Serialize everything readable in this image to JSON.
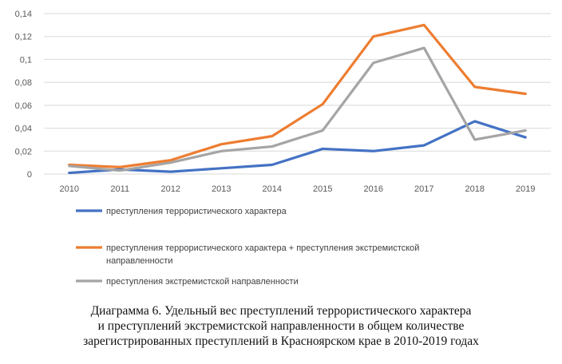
{
  "chart_data": {
    "type": "line",
    "x": [
      "2010",
      "2011",
      "2012",
      "2013",
      "2014",
      "2015",
      "2016",
      "2017",
      "2018",
      "2019"
    ],
    "ylim": [
      0,
      0.14
    ],
    "yticks": [
      "0",
      "0,02",
      "0,04",
      "0,06",
      "0,08",
      "0,1",
      "0,12",
      "0,14"
    ],
    "grid": true,
    "legend_position": "bottom",
    "series": [
      {
        "name": "преступления террористического характера",
        "color": "#4472C4",
        "values": [
          0.001,
          0.004,
          0.002,
          0.005,
          0.008,
          0.022,
          0.02,
          0.025,
          0.046,
          0.032
        ]
      },
      {
        "name": "преступления террористического характера + преступления экстремистской направленности",
        "name_lines": [
          "преступления террористического характера + преступления экстремистской",
          "направленности"
        ],
        "color": "#ED7D31",
        "values": [
          0.008,
          0.006,
          0.012,
          0.026,
          0.033,
          0.061,
          0.12,
          0.13,
          0.076,
          0.07
        ]
      },
      {
        "name": "преступления экстремистской направленности",
        "color": "#A5A5A5",
        "values": [
          0.007,
          0.003,
          0.01,
          0.02,
          0.024,
          0.038,
          0.097,
          0.11,
          0.03,
          0.038
        ]
      }
    ]
  },
  "caption": {
    "line1": "Диаграмма 6. Удельный вес преступлений террористического характера",
    "line2": "и преступлений экстремистской направленности в общем количестве",
    "line3": "зарегистрированных преступлений в Красноярском крае в 2010-2019 годах"
  }
}
